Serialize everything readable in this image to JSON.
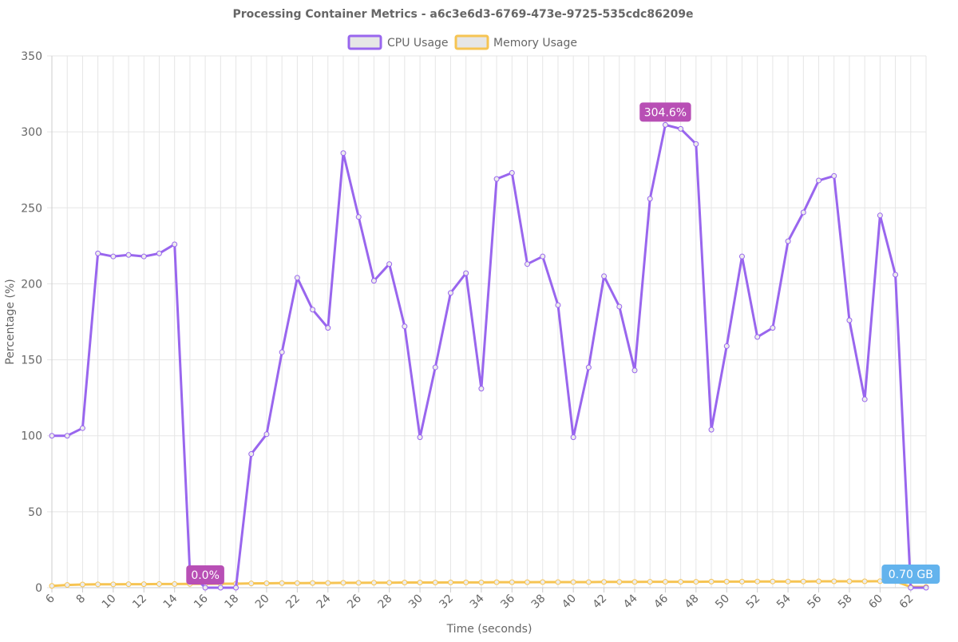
{
  "chart_data": {
    "type": "line",
    "title": "Processing Container Metrics - a6c3e6d3-6769-473e-9725-535cdc86209e",
    "xlabel": "Time (seconds)",
    "ylabel": "Percentage (%)",
    "ylim": [
      0,
      350
    ],
    "yticks": [
      0,
      50,
      100,
      150,
      200,
      250,
      300,
      350
    ],
    "xlim": [
      6,
      63
    ],
    "xticks": [
      6,
      8,
      10,
      12,
      14,
      16,
      18,
      20,
      22,
      24,
      26,
      28,
      30,
      32,
      34,
      36,
      38,
      40,
      42,
      44,
      46,
      48,
      50,
      52,
      54,
      56,
      58,
      60,
      62
    ],
    "grid": true,
    "legend_position": "top",
    "series": [
      {
        "name": "CPU Usage",
        "color": "#9966ee",
        "x": [
          6,
          7,
          8,
          9,
          10,
          11,
          12,
          13,
          14,
          15,
          16,
          17,
          18,
          19,
          20,
          21,
          22,
          23,
          24,
          25,
          26,
          27,
          28,
          29,
          30,
          31,
          32,
          33,
          34,
          35,
          36,
          37,
          38,
          39,
          40,
          41,
          42,
          43,
          44,
          45,
          46,
          47,
          48,
          49,
          50,
          51,
          52,
          53,
          54,
          55,
          56,
          57,
          58,
          59,
          60,
          61,
          62,
          63
        ],
        "values": [
          100,
          100,
          105,
          220,
          218,
          219,
          218,
          220,
          226,
          10,
          0,
          0,
          0,
          88,
          101,
          155,
          204,
          183,
          171,
          286,
          244,
          202,
          213,
          172,
          99,
          145,
          194,
          207,
          131,
          269,
          273,
          213,
          218,
          186,
          99,
          145,
          205,
          185,
          143,
          256,
          304.6,
          302,
          292,
          104,
          159,
          218,
          165,
          171,
          228,
          247,
          268,
          271,
          176,
          124,
          245,
          206,
          0,
          0
        ]
      },
      {
        "name": "Memory Usage",
        "color": "#f6c453",
        "x": [
          6,
          7,
          8,
          9,
          10,
          11,
          12,
          13,
          14,
          15,
          16,
          17,
          18,
          19,
          20,
          21,
          22,
          23,
          24,
          25,
          26,
          27,
          28,
          29,
          30,
          31,
          32,
          33,
          34,
          35,
          36,
          37,
          38,
          39,
          40,
          41,
          42,
          43,
          44,
          45,
          46,
          47,
          48,
          49,
          50,
          51,
          52,
          53,
          54,
          55,
          56,
          57,
          58,
          59,
          60,
          61,
          62,
          63
        ],
        "values": [
          1.2,
          1.8,
          2.1,
          2.2,
          2.2,
          2.3,
          2.3,
          2.4,
          2.4,
          2.5,
          2.5,
          2.6,
          2.6,
          2.8,
          2.9,
          3.0,
          3.0,
          3.1,
          3.1,
          3.2,
          3.2,
          3.3,
          3.3,
          3.4,
          3.4,
          3.4,
          3.5,
          3.5,
          3.5,
          3.6,
          3.6,
          3.6,
          3.7,
          3.7,
          3.7,
          3.7,
          3.8,
          3.8,
          3.8,
          3.9,
          3.9,
          3.9,
          3.9,
          4.0,
          4.0,
          4.0,
          4.1,
          4.1,
          4.1,
          4.1,
          4.2,
          4.2,
          4.2,
          4.2,
          4.3,
          4.3,
          0.5,
          0.5
        ]
      }
    ],
    "annotations": [
      {
        "series": "CPU Usage",
        "x": 46,
        "y": 304.6,
        "label": "304.6%",
        "color": "#b84fb5"
      },
      {
        "series": "CPU Usage",
        "x": 16,
        "y": 0,
        "label": "0.0%",
        "color": "#b84fb5"
      },
      {
        "series": "Memory Usage",
        "x": 62,
        "y": 0.5,
        "label": "0.70 GB",
        "color": "#63b3ed"
      }
    ]
  }
}
